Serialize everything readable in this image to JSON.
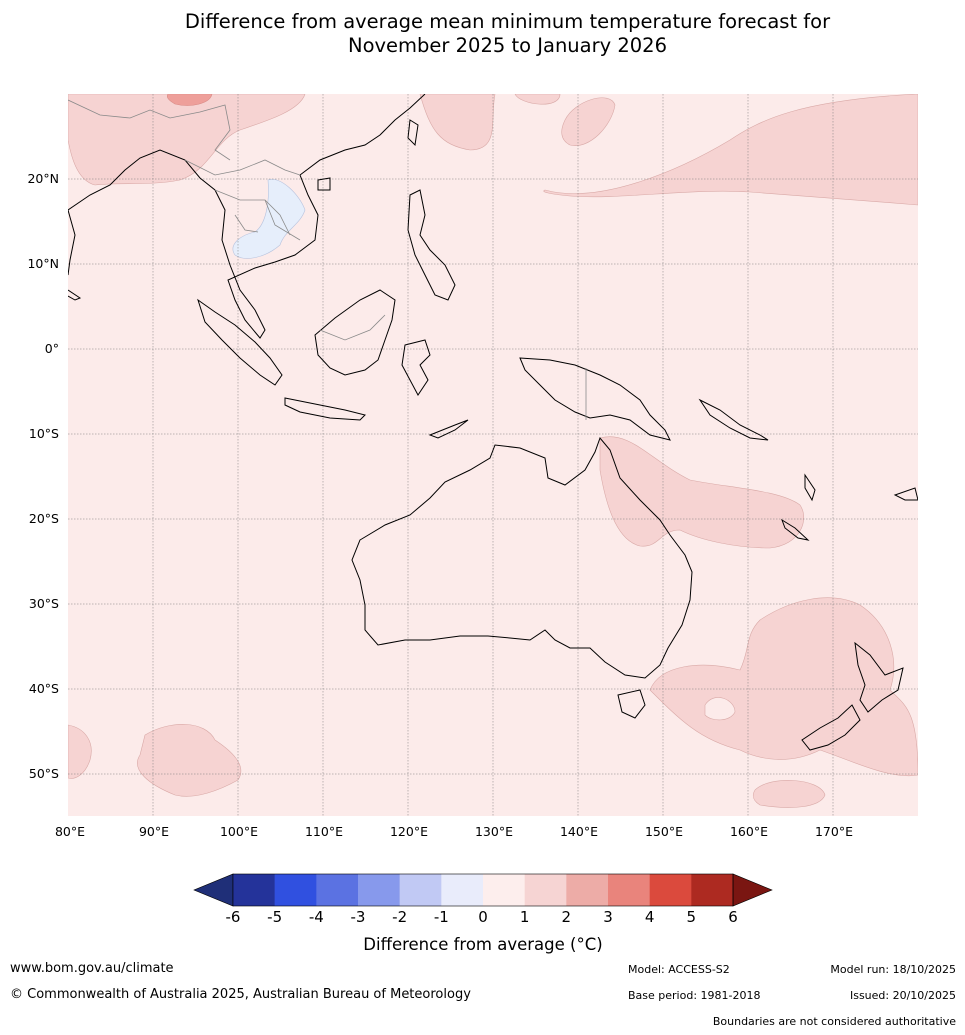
{
  "title": {
    "line1": "Difference from average mean minimum temperature forecast for",
    "line2": "November 2025 to January 2026"
  },
  "map": {
    "lat_labels": [
      "20°N",
      "10°N",
      "0°",
      "10°S",
      "20°S",
      "30°S",
      "40°S",
      "50°S"
    ],
    "lon_labels": [
      "80°E",
      "90°E",
      "100°E",
      "110°E",
      "120°E",
      "130°E",
      "140°E",
      "150°E",
      "160°E",
      "170°E"
    ],
    "background_color": "#fcebea",
    "warm_color": "#f6d3d2",
    "cool_color": "#e6eefb"
  },
  "colorbar": {
    "ticks": [
      "-6",
      "-5",
      "-4",
      "-3",
      "-2",
      "-1",
      "0",
      "1",
      "2",
      "3",
      "4",
      "5",
      "6"
    ],
    "colors": [
      "#24339a",
      "#3050e0",
      "#5b72e2",
      "#8799ec",
      "#c1c9f4",
      "#e9ecfb",
      "#fdeeed",
      "#f6d4d3",
      "#edaca7",
      "#e9847c",
      "#db4a3d",
      "#ad2a21"
    ],
    "under_color": "#1f2f78",
    "over_color": "#7a1612",
    "label": "Difference from average (°C)"
  },
  "footer": {
    "website": "www.bom.gov.au/climate",
    "copyright": "© Commonwealth of Australia 2025, Australian Bureau of Meteorology",
    "model": "Model: ACCESS-S2",
    "base_period": "Base period: 1981-2018",
    "model_run": "Model run: 18/10/2025",
    "issued": "Issued: 20/10/2025",
    "boundaries_note": "Boundaries are not considered authoritative"
  }
}
